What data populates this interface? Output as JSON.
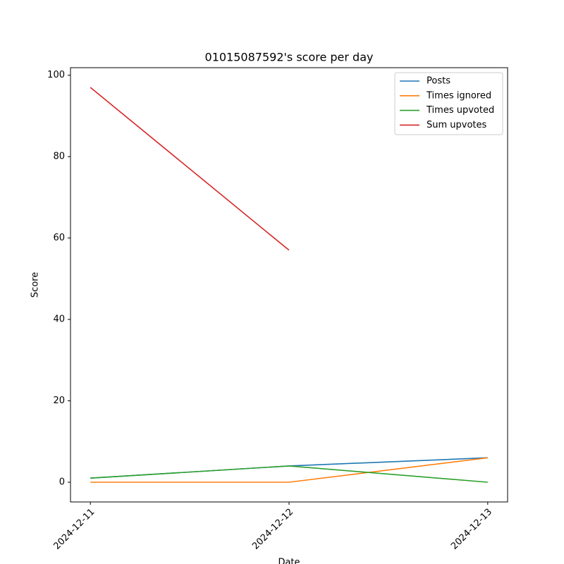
{
  "chart_data": {
    "type": "line",
    "title": "01015087592's score per day",
    "xlabel": "Date",
    "ylabel": "Score",
    "categories": [
      "2024-12-11",
      "2024-12-12",
      "2024-12-13"
    ],
    "xlim": [
      -0.1,
      2.1
    ],
    "series": [
      {
        "name": "Posts",
        "color": "#1f77b4",
        "values": [
          1,
          4,
          6
        ]
      },
      {
        "name": "Times ignored",
        "color": "#ff7f0e",
        "values": [
          0,
          0,
          6
        ]
      },
      {
        "name": "Times upvoted",
        "color": "#2ca02c",
        "values": [
          1,
          4,
          0
        ]
      },
      {
        "name": "Sum upvotes",
        "color": "#d62728",
        "values": [
          97,
          57,
          null
        ]
      }
    ],
    "ylim": [
      -4.85,
      101.85
    ],
    "yticks": [
      0,
      20,
      40,
      60,
      80,
      100
    ],
    "legend": "upper right"
  }
}
